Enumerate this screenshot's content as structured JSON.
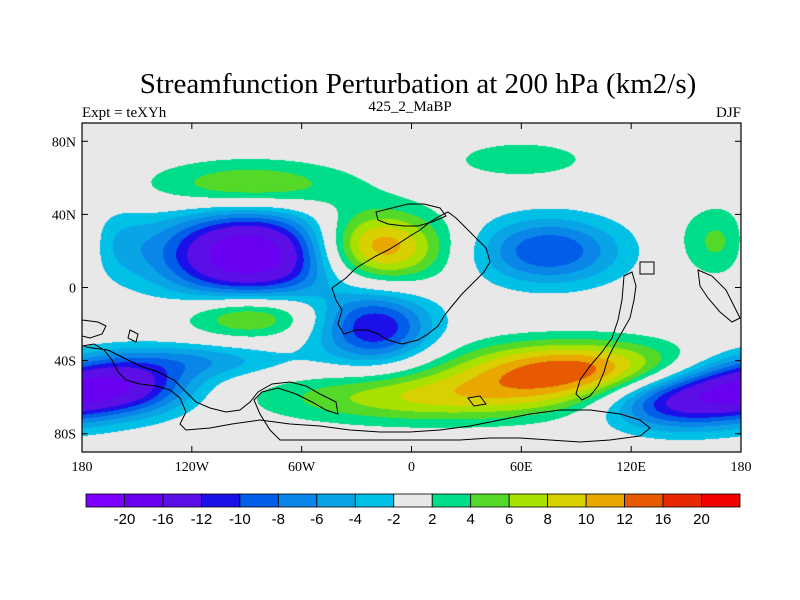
{
  "chart_data": {
    "type": "heatmap",
    "title": "Streamfunction Perturbation at 200 hPa (km2/s)",
    "left_label": "Expt = teXYh",
    "center_label": "425_2_MaBP",
    "right_label": "DJF",
    "x_ticks": [
      {
        "value": -180,
        "label": "180"
      },
      {
        "value": -120,
        "label": "120W"
      },
      {
        "value": -60,
        "label": "60W"
      },
      {
        "value": 0,
        "label": "0"
      },
      {
        "value": 60,
        "label": "60E"
      },
      {
        "value": 120,
        "label": "120E"
      },
      {
        "value": 180,
        "label": "180"
      }
    ],
    "y_ticks": [
      {
        "value": 80,
        "label": "80N"
      },
      {
        "value": 40,
        "label": "40N"
      },
      {
        "value": 0,
        "label": "0"
      },
      {
        "value": -40,
        "label": "40S"
      },
      {
        "value": -80,
        "label": "80S"
      }
    ],
    "xlim": [
      -180,
      180
    ],
    "ylim": [
      -90,
      90
    ],
    "levels": [
      -20,
      -16,
      -12,
      -10,
      -8,
      -6,
      -4,
      -2,
      2,
      4,
      6,
      8,
      10,
      12,
      16,
      20
    ],
    "level_labels": [
      "-20",
      "-16",
      "-12",
      "-10",
      "-8",
      "-6",
      "-4",
      "-2",
      "2",
      "4",
      "6",
      "8",
      "10",
      "12",
      "16",
      "20"
    ],
    "colors": [
      "#7e00ff",
      "#6a00f2",
      "#5b0ee6",
      "#1c10e8",
      "#005ee8",
      "#0a85e8",
      "#08a4e6",
      "#00c0e6",
      "#e8e8e8",
      "#00dd88",
      "#55d928",
      "#a8e000",
      "#d8d000",
      "#e8a800",
      "#e85a00",
      "#e82800",
      "#f20000"
    ],
    "anomalies": [
      {
        "lon": -88,
        "lat": 18,
        "value": -20,
        "rx": 34,
        "ry": 17
      },
      {
        "lon": -20,
        "lat": -22,
        "value": -12,
        "rx": 22,
        "ry": 14
      },
      {
        "lon": -165,
        "lat": -54,
        "value": -16,
        "rx": 30,
        "ry": 11
      },
      {
        "lon": 145,
        "lat": -62,
        "value": -13,
        "rx": 30,
        "ry": 11
      },
      {
        "lon": 75,
        "lat": 20,
        "value": -10,
        "rx": 28,
        "ry": 13
      },
      {
        "lon": -168,
        "lat": 25,
        "value": -6,
        "rx": 16,
        "ry": 14
      },
      {
        "lon": -115,
        "lat": -40,
        "value": -5,
        "rx": 36,
        "ry": 7
      },
      {
        "lon": -20,
        "lat": 22,
        "value": 13,
        "rx": 26,
        "ry": 14
      },
      {
        "lon": 88,
        "lat": -45,
        "value": 13,
        "rx": 45,
        "ry": 11
      },
      {
        "lon": 12,
        "lat": -60,
        "value": 8,
        "rx": 62,
        "ry": 10
      },
      {
        "lon": -88,
        "lat": -15,
        "value": 8,
        "rx": 26,
        "ry": 9
      },
      {
        "lon": -88,
        "lat": 55,
        "value": 7,
        "rx": 38,
        "ry": 10
      },
      {
        "lon": 60,
        "lat": 70,
        "value": 3,
        "rx": 33,
        "ry": 9
      },
      {
        "lon": 175,
        "lat": 25,
        "value": 7,
        "rx": 18,
        "ry": 14
      }
    ]
  }
}
